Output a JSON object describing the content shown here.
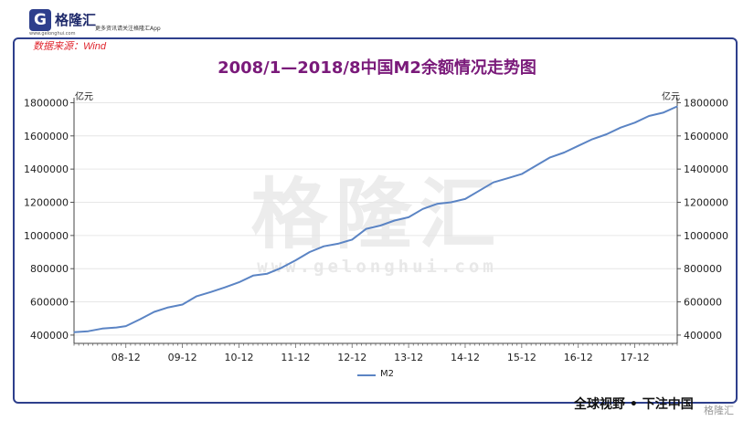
{
  "header": {
    "logo_mark": "G",
    "logo_name": "格隆汇",
    "logo_sub": "www.gelonghui.com",
    "logo_tag": "更多资讯请关注格隆汇App"
  },
  "source_note": "数据来源：Wind",
  "watermark": {
    "text": "格隆汇",
    "url": "www.gelonghui.com"
  },
  "footer": {
    "slogan": "全球视野 • 下注中国",
    "corner_mark": "格隆汇"
  },
  "colors": {
    "line": "#5b84c4",
    "title": "#7a1a7a",
    "frame": "#2e3f8c",
    "source": "#e0262e"
  },
  "chart_data": {
    "type": "line",
    "title": "2008/1—2018/8中国M2余额情况走势图",
    "ylabel_left": "亿元",
    "ylabel_right": "亿元",
    "ylim": [
      350000,
      1830000
    ],
    "yticks": [
      400000,
      600000,
      800000,
      1000000,
      1200000,
      1400000,
      1600000,
      1800000
    ],
    "ytick_labels": [
      "400000",
      "600000",
      "800000",
      "1000000",
      "1200000",
      "1400000",
      "1600000",
      "1800000"
    ],
    "xtick_labels": [
      "08-12",
      "09-12",
      "10-12",
      "11-12",
      "12-12",
      "13-12",
      "14-12",
      "15-12",
      "16-12",
      "17-12"
    ],
    "legend_position": "bottom",
    "series": [
      {
        "name": "M2",
        "x_unit": "month index from 2008-01",
        "points": [
          [
            0,
            417000
          ],
          [
            3,
            423000
          ],
          [
            6,
            439000
          ],
          [
            9,
            446000
          ],
          [
            11,
            454000
          ],
          [
            14,
            495000
          ],
          [
            17,
            540000
          ],
          [
            20,
            567000
          ],
          [
            23,
            584000
          ],
          [
            26,
            634000
          ],
          [
            29,
            659000
          ],
          [
            32,
            687000
          ],
          [
            35,
            718000
          ],
          [
            38,
            758000
          ],
          [
            41,
            770000
          ],
          [
            44,
            805000
          ],
          [
            47,
            850000
          ],
          [
            50,
            900000
          ],
          [
            53,
            935000
          ],
          [
            56,
            950000
          ],
          [
            59,
            975000
          ],
          [
            62,
            1040000
          ],
          [
            65,
            1060000
          ],
          [
            68,
            1090000
          ],
          [
            71,
            1110000
          ],
          [
            74,
            1160000
          ],
          [
            77,
            1190000
          ],
          [
            80,
            1200000
          ],
          [
            83,
            1220000
          ],
          [
            86,
            1270000
          ],
          [
            89,
            1320000
          ],
          [
            92,
            1345000
          ],
          [
            95,
            1370000
          ],
          [
            98,
            1420000
          ],
          [
            101,
            1470000
          ],
          [
            104,
            1500000
          ],
          [
            107,
            1540000
          ],
          [
            110,
            1580000
          ],
          [
            113,
            1610000
          ],
          [
            116,
            1650000
          ],
          [
            119,
            1680000
          ],
          [
            122,
            1720000
          ],
          [
            125,
            1740000
          ],
          [
            128,
            1778000
          ]
        ]
      }
    ]
  }
}
